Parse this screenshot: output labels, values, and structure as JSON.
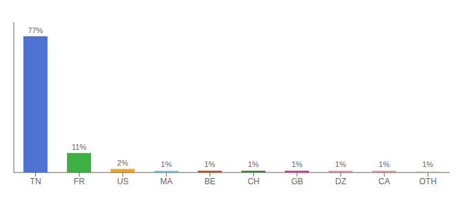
{
  "chart_data": {
    "type": "bar",
    "categories": [
      "TN",
      "FR",
      "US",
      "MA",
      "BE",
      "CH",
      "GB",
      "DZ",
      "CA",
      "OTH"
    ],
    "values": [
      77,
      11,
      2,
      1,
      1,
      1,
      1,
      1,
      1,
      1
    ],
    "value_labels": [
      "77%",
      "11%",
      "2%",
      "1%",
      "1%",
      "1%",
      "1%",
      "1%",
      "1%",
      "1%"
    ],
    "data_labels": true,
    "colors": [
      "#4d72d1",
      "#3cb043",
      "#f5a623",
      "#7ec8e3",
      "#c0470a",
      "#2e7d32",
      "#e91e8c",
      "#f48fb1",
      "#e8a090",
      "#f0eecc"
    ],
    "ylim": [
      0,
      85
    ],
    "tick_labels": "x",
    "grid": false
  }
}
